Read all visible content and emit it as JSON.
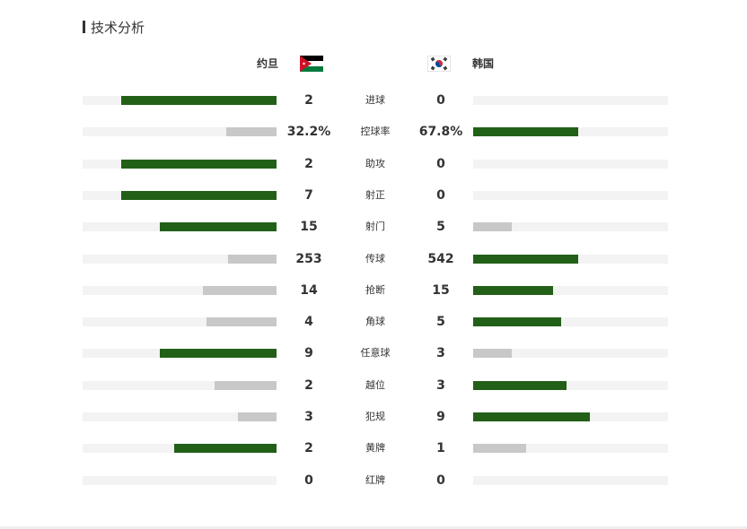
{
  "section": {
    "title": "技术分析"
  },
  "teams": {
    "left": {
      "name": "约旦",
      "flag": "jordan-flag"
    },
    "right": {
      "name": "韩国",
      "flag": "south-korea-flag"
    }
  },
  "colors": {
    "leader": "#226018",
    "trailer": "#c8c8c8",
    "track": "#f3f3f3"
  },
  "stats": [
    {
      "label": "进球",
      "left": "2",
      "right": "0",
      "left_pct": 0.8,
      "right_pct": 0.0,
      "leader": "left"
    },
    {
      "label": "控球率",
      "left": "32.2%",
      "right": "67.8%",
      "left_pct": 0.26,
      "right_pct": 0.54,
      "leader": "right"
    },
    {
      "label": "助攻",
      "left": "2",
      "right": "0",
      "left_pct": 0.8,
      "right_pct": 0.0,
      "leader": "left"
    },
    {
      "label": "射正",
      "left": "7",
      "right": "0",
      "left_pct": 0.8,
      "right_pct": 0.0,
      "leader": "left"
    },
    {
      "label": "射门",
      "left": "15",
      "right": "5",
      "left_pct": 0.6,
      "right_pct": 0.2,
      "leader": "left"
    },
    {
      "label": "传球",
      "left": "253",
      "right": "542",
      "left_pct": 0.25,
      "right_pct": 0.54,
      "leader": "right"
    },
    {
      "label": "抢断",
      "left": "14",
      "right": "15",
      "left_pct": 0.38,
      "right_pct": 0.41,
      "leader": "right"
    },
    {
      "label": "角球",
      "left": "4",
      "right": "5",
      "left_pct": 0.36,
      "right_pct": 0.45,
      "leader": "right"
    },
    {
      "label": "任意球",
      "left": "9",
      "right": "3",
      "left_pct": 0.6,
      "right_pct": 0.2,
      "leader": "left"
    },
    {
      "label": "越位",
      "left": "2",
      "right": "3",
      "left_pct": 0.32,
      "right_pct": 0.48,
      "leader": "right"
    },
    {
      "label": "犯规",
      "left": "3",
      "right": "9",
      "left_pct": 0.2,
      "right_pct": 0.6,
      "leader": "right"
    },
    {
      "label": "黄牌",
      "left": "2",
      "right": "1",
      "left_pct": 0.53,
      "right_pct": 0.27,
      "leader": "left"
    },
    {
      "label": "红牌",
      "left": "0",
      "right": "0",
      "left_pct": 0.0,
      "right_pct": 0.0,
      "leader": "none"
    }
  ]
}
